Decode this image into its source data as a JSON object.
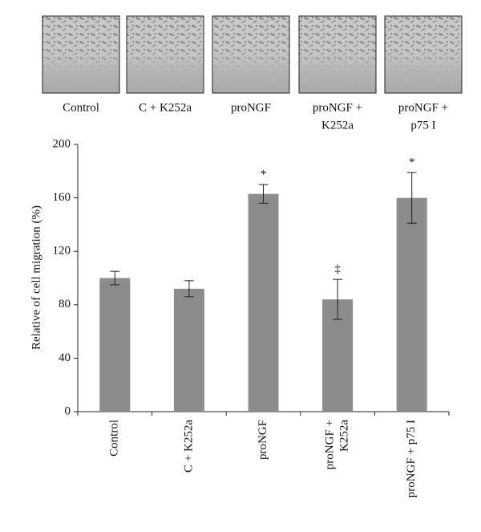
{
  "chart_data": {
    "type": "bar",
    "image_labels": [
      [
        "Control"
      ],
      [
        "C + K252a"
      ],
      [
        "proNGF"
      ],
      [
        "proNGF +",
        "K252a"
      ],
      [
        "proNGF +",
        "p75 I"
      ]
    ],
    "y_label": "Relative of cell migration (%)",
    "categories": [
      [
        "Control"
      ],
      [
        "C + K252a"
      ],
      [
        "proNGF"
      ],
      [
        "proNGF +",
        "K252a"
      ],
      [
        "proNGF + p75 I"
      ]
    ],
    "values": [
      100,
      92,
      163,
      84,
      160
    ],
    "errors": [
      5,
      6,
      7,
      15,
      19
    ],
    "annotations": [
      null,
      null,
      "*",
      "‡",
      "*"
    ],
    "color": "#8c8c8c",
    "ylim": [
      0,
      200
    ],
    "yticks": [
      0,
      40,
      80,
      120,
      160,
      200
    ],
    "grid": false
  }
}
